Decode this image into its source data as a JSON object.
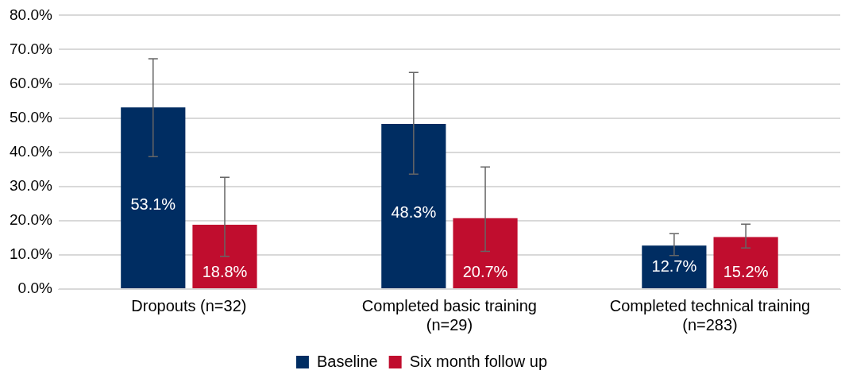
{
  "chart_data": {
    "type": "bar",
    "categories": [
      "Dropouts (n=32)",
      "Completed basic training (n=29)",
      "Completed technical training (n=283)"
    ],
    "series": [
      {
        "name": "Baseline",
        "color": "#002d62",
        "values": [
          53.1,
          48.3,
          12.7
        ],
        "errors": [
          [
            38.7,
            67.3
          ],
          [
            33.6,
            63.3
          ],
          [
            9.8,
            16.2
          ]
        ],
        "value_labels": [
          "53.1%",
          "48.3%",
          "12.7%"
        ]
      },
      {
        "name": "Six month follow up",
        "color": "#c00d2e",
        "values": [
          18.8,
          20.7,
          15.2
        ],
        "errors": [
          [
            9.6,
            32.7
          ],
          [
            11.0,
            35.7
          ],
          [
            12.0,
            19.0
          ]
        ],
        "value_labels": [
          "18.8%",
          "20.7%",
          "15.2%"
        ]
      }
    ],
    "ylim": [
      0,
      80
    ],
    "yticks": [
      {
        "value": 0,
        "label": "0.0%"
      },
      {
        "value": 10,
        "label": "10.0%"
      },
      {
        "value": 20,
        "label": "20.0%"
      },
      {
        "value": 30,
        "label": "30.0%"
      },
      {
        "value": 40,
        "label": "40.0%"
      },
      {
        "value": 50,
        "label": "50.0%"
      },
      {
        "value": 60,
        "label": "60.0%"
      },
      {
        "value": 70,
        "label": "70.0%"
      },
      {
        "value": 80,
        "label": "80.0%"
      }
    ],
    "grid": "y",
    "legend": "bottom"
  }
}
